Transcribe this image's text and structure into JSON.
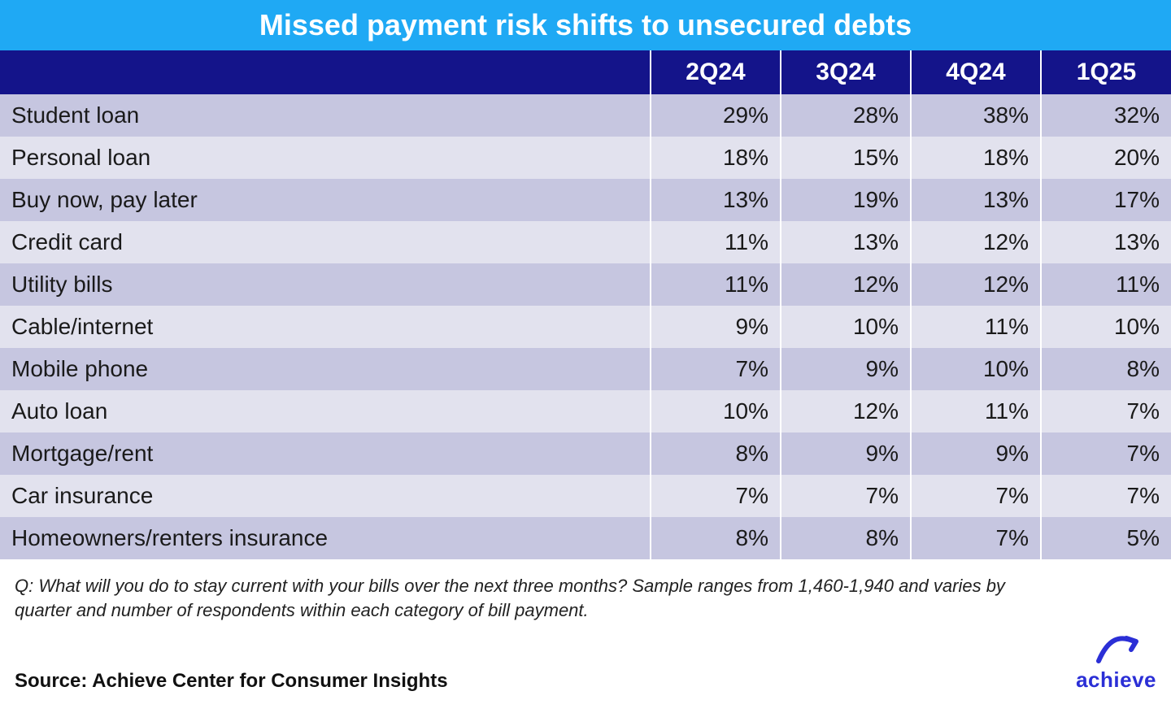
{
  "title": "Missed payment risk shifts to unsecured debts",
  "title_bg": "#1fa9f4",
  "title_color": "#ffffff",
  "header_bg": "#14148a",
  "header_color": "#ffffff",
  "row_colors": {
    "even": "#c6c6e0",
    "odd": "#e2e2ee"
  },
  "text_color": "#1a1a1a",
  "columns": [
    "",
    "2Q24",
    "3Q24",
    "4Q24",
    "1Q25"
  ],
  "rows": [
    {
      "label": "Student loan",
      "values": [
        "29%",
        "28%",
        "38%",
        "32%"
      ]
    },
    {
      "label": "Personal loan",
      "values": [
        "18%",
        "15%",
        "18%",
        "20%"
      ]
    },
    {
      "label": "Buy now, pay later",
      "values": [
        "13%",
        "19%",
        "13%",
        "17%"
      ]
    },
    {
      "label": "Credit card",
      "values": [
        "11%",
        "13%",
        "12%",
        "13%"
      ]
    },
    {
      "label": "Utility bills",
      "values": [
        "11%",
        "12%",
        "12%",
        "11%"
      ]
    },
    {
      "label": "Cable/internet",
      "values": [
        "9%",
        "10%",
        "11%",
        "10%"
      ]
    },
    {
      "label": "Mobile phone",
      "values": [
        "7%",
        "9%",
        "10%",
        "8%"
      ]
    },
    {
      "label": "Auto loan",
      "values": [
        "10%",
        "12%",
        "11%",
        "7%"
      ]
    },
    {
      "label": "Mortgage/rent",
      "values": [
        "8%",
        "9%",
        "9%",
        "7%"
      ]
    },
    {
      "label": "Car insurance",
      "values": [
        "7%",
        "7%",
        "7%",
        "7%"
      ]
    },
    {
      "label": "Homeowners/renters insurance",
      "values": [
        "8%",
        "8%",
        "7%",
        "5%"
      ]
    }
  ],
  "footnote": "Q: What will you do to stay current with your bills over the next three months? Sample ranges from 1,460-1,940 and varies by quarter and number of respondents within each category of bill payment.",
  "source": "Source: Achieve Center for Consumer Insights",
  "brand": "achieve",
  "brand_color": "#2b2fd6"
}
